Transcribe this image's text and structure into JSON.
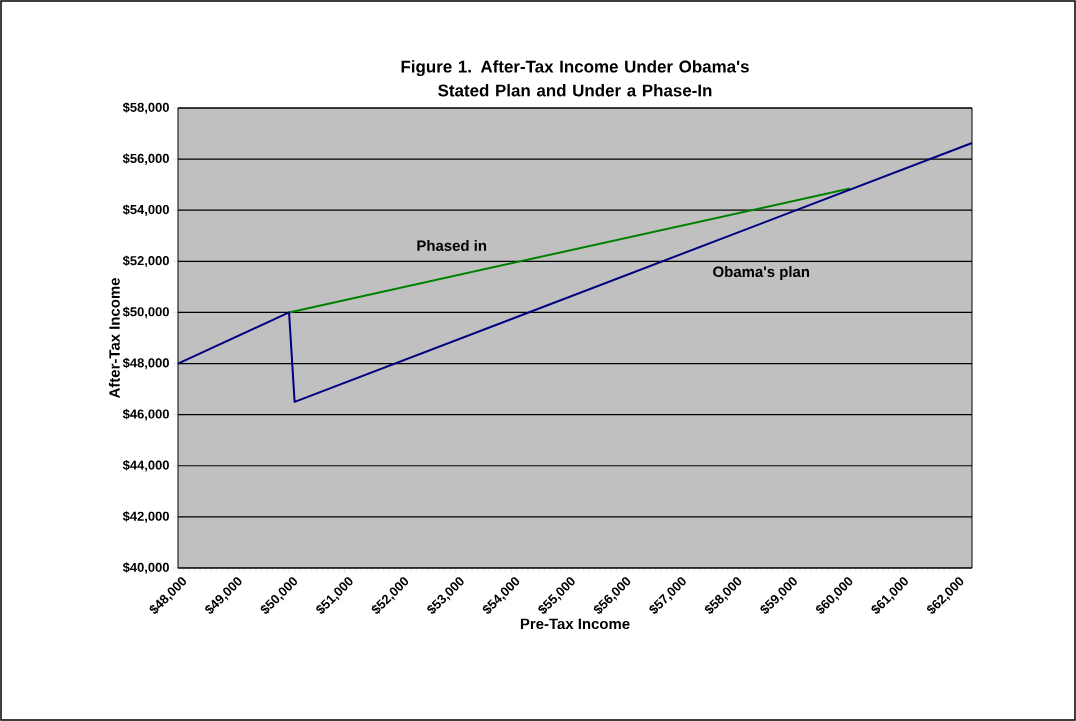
{
  "chart_data": {
    "type": "line",
    "title": "Figure 1. After-Tax Income Under Obama's Stated Plan and Under a Phase-In",
    "xlabel": "Pre-Tax Income",
    "ylabel": "After-Tax Income",
    "xlim": [
      48000,
      62300
    ],
    "ylim": [
      40000,
      58000
    ],
    "grid": "y",
    "line_style": "solid",
    "xticks": [
      {
        "value": 48000,
        "label": "$48,000"
      },
      {
        "value": 49000,
        "label": "$49,000"
      },
      {
        "value": 50000,
        "label": "$50,000"
      },
      {
        "value": 51000,
        "label": "$51,000"
      },
      {
        "value": 52000,
        "label": "$52,000"
      },
      {
        "value": 53000,
        "label": "$53,000"
      },
      {
        "value": 54000,
        "label": "$54,000"
      },
      {
        "value": 55000,
        "label": "$55,000"
      },
      {
        "value": 56000,
        "label": "$56,000"
      },
      {
        "value": 57000,
        "label": "$57,000"
      },
      {
        "value": 58000,
        "label": "$58,000"
      },
      {
        "value": 59000,
        "label": "$59,000"
      },
      {
        "value": 60000,
        "label": "$60,000"
      },
      {
        "value": 61000,
        "label": "$61,000"
      },
      {
        "value": 62000,
        "label": "$62,000"
      }
    ],
    "yticks": [
      {
        "value": 40000,
        "label": "$40,000"
      },
      {
        "value": 42000,
        "label": "$42,000"
      },
      {
        "value": 44000,
        "label": "$44,000"
      },
      {
        "value": 46000,
        "label": "$46,000"
      },
      {
        "value": 48000,
        "label": "$48,000"
      },
      {
        "value": 50000,
        "label": "$50,000"
      },
      {
        "value": 52000,
        "label": "$52,000"
      },
      {
        "value": 54000,
        "label": "$54,000"
      },
      {
        "value": 56000,
        "label": "$56,000"
      },
      {
        "value": 58000,
        "label": "$58,000"
      }
    ],
    "series": [
      {
        "name": "Phased in",
        "color": "#008000",
        "x": [
          50000,
          60100
        ],
        "values": [
          50000,
          54850
        ]
      },
      {
        "name": "Obama's plan",
        "color": "#000080",
        "x": [
          48000,
          50000,
          50100,
          62300
        ],
        "values": [
          48000,
          50000,
          46500,
          56630
        ]
      }
    ]
  }
}
